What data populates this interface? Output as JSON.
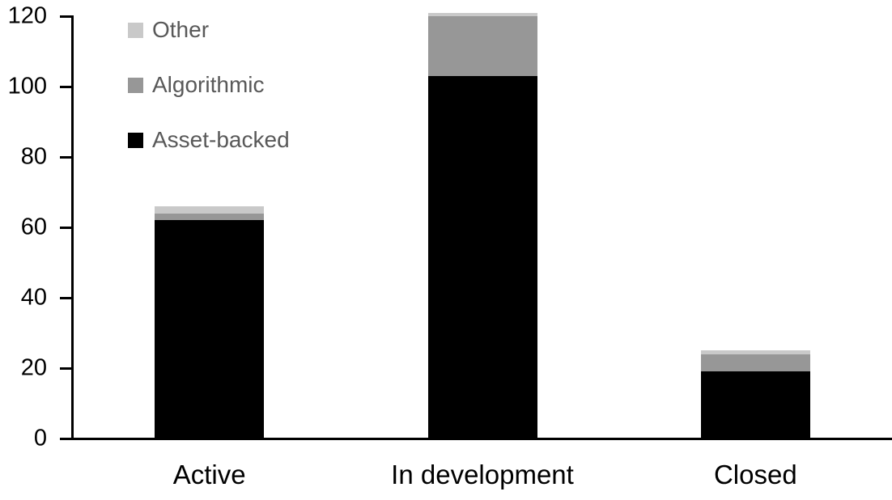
{
  "chart_data": {
    "type": "bar",
    "stacked": true,
    "title": "",
    "xlabel": "",
    "ylabel": "",
    "categories": [
      "Active",
      "In development",
      "Closed"
    ],
    "series": [
      {
        "name": "Asset-backed",
        "color": "#000000",
        "values": [
          62,
          103,
          19
        ]
      },
      {
        "name": "Algorithmic",
        "color": "#979797",
        "values": [
          2,
          17,
          5
        ]
      },
      {
        "name": "Other",
        "color": "#c9c9c9",
        "values": [
          2,
          1,
          1
        ]
      }
    ],
    "stack_totals": [
      66,
      121,
      25
    ],
    "ylim": [
      0,
      120
    ],
    "y_ticks": [
      0,
      20,
      40,
      60,
      80,
      100,
      120
    ],
    "grid": false,
    "legend": {
      "position": "top-left-inside",
      "entries": [
        "Other",
        "Algorithmic",
        "Asset-backed"
      ],
      "text_color": "#595959"
    },
    "colors": {
      "axis": "#000000",
      "background": "#ffffff"
    }
  }
}
